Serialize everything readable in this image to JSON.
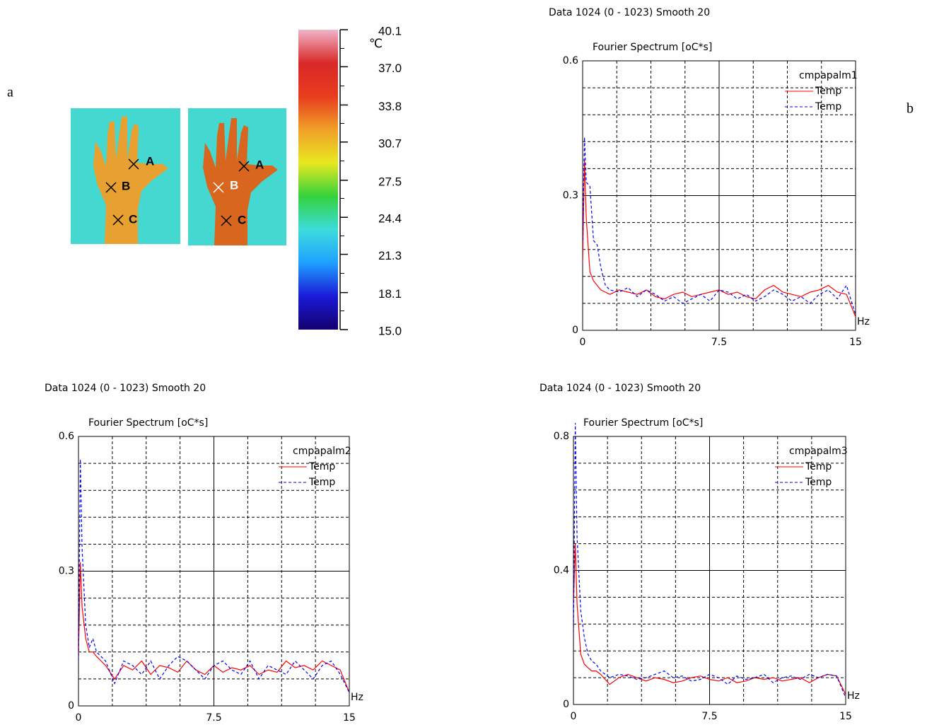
{
  "labels": [
    "a",
    "b"
  ],
  "images": [
    {
      "markers": [
        "A",
        "B",
        "C"
      ]
    },
    {
      "markers": [
        "A",
        "B",
        "C"
      ]
    }
  ],
  "chart_data": [
    {
      "type": "colorbar",
      "unit": "℃",
      "ylim": [
        15.0,
        40.1
      ],
      "yticks": [
        40.1,
        {
          "value": 37,
          "label": "37.0"
        },
        33.8,
        30.7,
        27.5,
        24.4,
        21.3,
        18.1,
        {
          "value": 15,
          "label": "15.0"
        }
      ],
      "colors": [
        "#14006e",
        "#1a1ad8",
        "#1ea0ff",
        "#3cdcdc",
        "#34d23c",
        "#e8e820",
        "#f0a028",
        "#e83c1e",
        "#d82828",
        "#f0b4c8"
      ]
    },
    {
      "type": "line",
      "header": "Data 1024 (0 - 1023)  Smooth 20",
      "title": "Fourier Spectrum [oC*s]",
      "legend_title": "cmpapalm1",
      "xlabel": "Hz",
      "xlim": [
        0,
        15
      ],
      "xticks": [
        0,
        7.5,
        15
      ],
      "ylim": [
        0,
        0.6
      ],
      "yticks": [
        0,
        0.3,
        0.6
      ],
      "grid": true,
      "x": [
        0,
        0.1,
        0.2,
        0.4,
        0.6,
        0.8,
        1,
        1.25,
        1.5,
        2,
        2.5,
        3,
        3.5,
        4,
        4.5,
        5,
        5.5,
        6,
        6.5,
        7,
        7.5,
        8,
        8.5,
        9,
        9.5,
        10,
        10.5,
        11,
        11.5,
        12,
        12.5,
        13,
        13.5,
        14,
        14.5,
        15
      ],
      "series": [
        {
          "name": "Temp",
          "color": "#ff0000",
          "style": "solid",
          "values": [
            0.15,
            0.38,
            0.25,
            0.13,
            0.11,
            0.1,
            0.09,
            0.085,
            0.08,
            0.09,
            0.085,
            0.08,
            0.09,
            0.075,
            0.07,
            0.08,
            0.085,
            0.075,
            0.08,
            0.085,
            0.09,
            0.08,
            0.085,
            0.075,
            0.07,
            0.09,
            0.1,
            0.085,
            0.08,
            0.075,
            0.085,
            0.09,
            0.1,
            0.085,
            0.08,
            0.03
          ]
        },
        {
          "name": "Temp",
          "color": "#0000ff",
          "style": "dashed",
          "values": [
            0.2,
            0.43,
            0.33,
            0.32,
            0.2,
            0.19,
            0.14,
            0.1,
            0.09,
            0.085,
            0.095,
            0.075,
            0.09,
            0.08,
            0.065,
            0.075,
            0.06,
            0.07,
            0.08,
            0.065,
            0.09,
            0.085,
            0.07,
            0.08,
            0.065,
            0.075,
            0.09,
            0.08,
            0.065,
            0.075,
            0.06,
            0.08,
            0.09,
            0.07,
            0.1,
            0.035
          ]
        }
      ]
    },
    {
      "type": "line",
      "header": "Data 1024 (0 - 1023)  Smooth 20",
      "title": "Fourier Spectrum [oC*s]",
      "legend_title": "cmpapalm2",
      "xlabel": "Hz",
      "xlim": [
        0,
        15
      ],
      "xticks": [
        0,
        7.5,
        15
      ],
      "ylim": [
        0,
        0.6
      ],
      "yticks": [
        0,
        0.3,
        0.6
      ],
      "grid": true,
      "x": [
        0,
        0.1,
        0.2,
        0.4,
        0.6,
        0.8,
        1,
        1.25,
        1.5,
        2,
        2.5,
        3,
        3.5,
        4,
        4.5,
        5,
        5.5,
        6,
        6.5,
        7,
        7.5,
        8,
        8.5,
        9,
        9.5,
        10,
        10.5,
        11,
        11.5,
        12,
        12.5,
        13,
        13.5,
        14,
        14.5,
        15
      ],
      "series": [
        {
          "name": "Temp",
          "color": "#ff0000",
          "style": "solid",
          "values": [
            0.11,
            0.32,
            0.22,
            0.15,
            0.12,
            0.12,
            0.11,
            0.1,
            0.09,
            0.06,
            0.09,
            0.08,
            0.1,
            0.07,
            0.09,
            0.085,
            0.075,
            0.1,
            0.08,
            0.07,
            0.09,
            0.075,
            0.085,
            0.08,
            0.09,
            0.07,
            0.08,
            0.075,
            0.1,
            0.085,
            0.09,
            0.08,
            0.1,
            0.09,
            0.08,
            0.03
          ]
        },
        {
          "name": "Temp",
          "color": "#0000ff",
          "style": "dashed",
          "values": [
            0.1,
            0.55,
            0.35,
            0.18,
            0.13,
            0.15,
            0.12,
            0.11,
            0.1,
            0.05,
            0.1,
            0.09,
            0.07,
            0.1,
            0.06,
            0.09,
            0.11,
            0.1,
            0.08,
            0.06,
            0.09,
            0.1,
            0.08,
            0.07,
            0.1,
            0.06,
            0.09,
            0.08,
            0.07,
            0.1,
            0.08,
            0.06,
            0.09,
            0.1,
            0.07,
            0.03
          ]
        }
      ]
    },
    {
      "type": "line",
      "header": "Data 1024 (0 - 1023)  Smooth 20",
      "title": "Fourier Spectrum [oC*s]",
      "legend_title": "cmpapalm3",
      "xlabel": "Hz",
      "xlim": [
        0,
        15
      ],
      "xticks": [
        0,
        7.5,
        15
      ],
      "ylim": [
        0,
        0.8
      ],
      "yticks": [
        0,
        0.4,
        0.8
      ],
      "grid": true,
      "x": [
        0,
        0.1,
        0.2,
        0.4,
        0.6,
        0.8,
        1,
        1.25,
        1.5,
        2,
        2.5,
        3,
        3.5,
        4,
        4.5,
        5,
        5.5,
        6,
        6.5,
        7,
        7.5,
        8,
        8.5,
        9,
        9.5,
        10,
        10.5,
        11,
        11.5,
        12,
        12.5,
        13,
        13.5,
        14,
        14.5,
        15
      ],
      "series": [
        {
          "name": "Temp",
          "color": "#ff0000",
          "style": "solid",
          "values": [
            0.3,
            0.48,
            0.3,
            0.15,
            0.12,
            0.11,
            0.1,
            0.1,
            0.09,
            0.06,
            0.08,
            0.09,
            0.08,
            0.07,
            0.08,
            0.075,
            0.065,
            0.07,
            0.08,
            0.085,
            0.075,
            0.07,
            0.08,
            0.065,
            0.07,
            0.08,
            0.075,
            0.08,
            0.07,
            0.075,
            0.08,
            0.065,
            0.08,
            0.09,
            0.085,
            0.03
          ]
        },
        {
          "name": "Temp",
          "color": "#0000ff",
          "style": "dashed",
          "values": [
            0.2,
            0.84,
            0.5,
            0.28,
            0.2,
            0.15,
            0.13,
            0.12,
            0.1,
            0.08,
            0.09,
            0.085,
            0.075,
            0.08,
            0.09,
            0.1,
            0.08,
            0.085,
            0.07,
            0.075,
            0.09,
            0.08,
            0.06,
            0.085,
            0.075,
            0.08,
            0.09,
            0.065,
            0.08,
            0.085,
            0.075,
            0.09,
            0.08,
            0.09,
            0.085,
            0.02
          ]
        }
      ]
    }
  ]
}
